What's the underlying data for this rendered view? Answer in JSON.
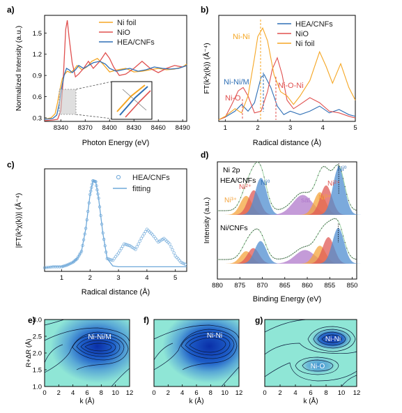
{
  "colors": {
    "ni_foil": "#f5a623",
    "nio": "#e0504f",
    "hea": "#2f6fb5",
    "fit_line": "#6ea8d9",
    "orange": "#f4a43c",
    "red": "#e05a55",
    "blue": "#4f8ed0",
    "purple": "#b07acb",
    "ni3": "#f6b545",
    "ni2": "#e46b6b",
    "wt_bg": "#8fe6d6",
    "wt_mid": "#5aa9d6",
    "wt_core": "#0a2fa8"
  },
  "panels": {
    "a": {
      "label": "a)"
    },
    "b": {
      "label": "b)"
    },
    "c": {
      "label": "c)"
    },
    "d": {
      "label": "d)"
    },
    "e": {
      "label": "e)"
    },
    "f": {
      "label": "f)"
    },
    "g": {
      "label": "g)"
    }
  },
  "chart_data": [
    {
      "id": "a",
      "type": "line",
      "xlabel": "Photon Energy (eV)",
      "ylabel": "Normalized Intensity (a.u.)",
      "xlim": [
        8320,
        8495
      ],
      "ylim": [
        0.25,
        1.75
      ],
      "xticks": [
        "8340",
        "8370",
        "8400",
        "8430",
        "8460",
        "8490"
      ],
      "yticks": [
        "0.3",
        "0.6",
        "0.9",
        "1.2",
        "1.5"
      ],
      "legend_position": "top-right",
      "inset": true,
      "series": [
        {
          "name": "Ni foil",
          "x": [
            8320,
            8328,
            8333,
            8336,
            8339,
            8342,
            8345,
            8348,
            8352,
            8356,
            8360,
            8366,
            8372,
            8378,
            8385,
            8392,
            8400,
            8410,
            8420,
            8430,
            8440,
            8450,
            8460,
            8470,
            8480,
            8490,
            8495
          ],
          "y": [
            0.28,
            0.3,
            0.36,
            0.52,
            0.7,
            0.86,
            0.92,
            0.96,
            0.94,
            0.98,
            1.04,
            0.98,
            1.02,
            1.1,
            1.14,
            1.06,
            0.95,
            0.98,
            1.0,
            0.95,
            0.96,
            0.98,
            1.0,
            0.98,
            0.99,
            1.02,
            1.06
          ]
        },
        {
          "name": "NiO",
          "x": [
            8320,
            8330,
            8336,
            8340,
            8343,
            8346,
            8348,
            8350,
            8354,
            8358,
            8362,
            8368,
            8374,
            8380,
            8388,
            8395,
            8400,
            8405,
            8412,
            8420,
            8430,
            8440,
            8450,
            8460,
            8470,
            8480,
            8490,
            8495
          ],
          "y": [
            0.26,
            0.27,
            0.28,
            0.4,
            0.85,
            1.55,
            1.68,
            1.45,
            1.08,
            0.88,
            0.92,
            1.0,
            1.1,
            1.0,
            1.1,
            1.22,
            1.14,
            1.02,
            0.9,
            0.92,
            1.0,
            1.1,
            1.0,
            0.94,
            1.0,
            1.04,
            1.02,
            1.04
          ]
        },
        {
          "name": "HEA/CNFs",
          "x": [
            8320,
            8330,
            8335,
            8338,
            8341,
            8344,
            8347,
            8350,
            8354,
            8358,
            8362,
            8368,
            8374,
            8380,
            8388,
            8395,
            8400,
            8408,
            8416,
            8425,
            8435,
            8445,
            8455,
            8465,
            8475,
            8485,
            8495
          ],
          "y": [
            0.28,
            0.29,
            0.34,
            0.5,
            0.72,
            0.9,
            1.0,
            0.98,
            0.94,
            0.98,
            1.04,
            1.0,
            1.04,
            1.08,
            1.1,
            1.06,
            1.0,
            0.96,
            0.98,
            1.0,
            0.96,
            0.98,
            1.02,
            1.0,
            0.99,
            1.0,
            1.04
          ]
        }
      ]
    },
    {
      "id": "b",
      "type": "line",
      "xlabel": "Radical distance (Å)",
      "ylabel": "FT(k³χ(k)) (Å⁻⁴)",
      "xlim": [
        0.8,
        5.0
      ],
      "xticks": [
        "1",
        "2",
        "3",
        "4",
        "5"
      ],
      "legend_position": "top-right",
      "annotations": [
        "Ni-Ni",
        "Ni-Ni/M",
        "Ni-O",
        "Ni-O-Ni"
      ],
      "series": [
        {
          "name": "HEA/CNFs",
          "x": [
            0.8,
            1.0,
            1.3,
            1.5,
            1.7,
            1.9,
            2.1,
            2.2,
            2.4,
            2.6,
            2.8,
            3.0,
            3.3,
            3.6,
            3.9,
            4.2,
            4.5,
            4.8,
            5.0
          ],
          "y": [
            0.02,
            0.05,
            0.12,
            0.2,
            0.12,
            0.22,
            0.52,
            0.55,
            0.4,
            0.18,
            0.08,
            0.12,
            0.08,
            0.12,
            0.18,
            0.1,
            0.14,
            0.08,
            0.06
          ]
        },
        {
          "name": "NiO",
          "x": [
            0.8,
            1.0,
            1.2,
            1.4,
            1.55,
            1.7,
            1.9,
            2.1,
            2.3,
            2.45,
            2.6,
            2.75,
            2.9,
            3.1,
            3.3,
            3.6,
            3.9,
            4.2,
            4.5,
            4.8,
            5.0
          ],
          "y": [
            0.02,
            0.05,
            0.2,
            0.36,
            0.4,
            0.3,
            0.1,
            0.12,
            0.35,
            0.62,
            0.75,
            0.55,
            0.25,
            0.15,
            0.2,
            0.28,
            0.22,
            0.12,
            0.1,
            0.06,
            0.04
          ]
        },
        {
          "name": "Ni foil",
          "x": [
            0.8,
            1.0,
            1.3,
            1.5,
            1.7,
            1.9,
            2.0,
            2.15,
            2.3,
            2.5,
            2.7,
            2.9,
            3.1,
            3.3,
            3.6,
            3.9,
            4.1,
            4.3,
            4.55,
            4.8,
            5.0
          ],
          "y": [
            0.02,
            0.06,
            0.15,
            0.1,
            0.3,
            0.75,
            1.0,
            1.1,
            0.95,
            0.55,
            0.35,
            0.3,
            0.2,
            0.3,
            0.48,
            0.82,
            0.65,
            0.45,
            0.68,
            0.4,
            0.25
          ]
        }
      ]
    },
    {
      "id": "c",
      "type": "line",
      "xlabel": "Radical distance (Å)",
      "ylabel": "|FT(k³χ(k))| (Å⁻⁴)",
      "xlim": [
        0.4,
        5.4
      ],
      "xticks": [
        "1",
        "2",
        "3",
        "4",
        "5"
      ],
      "legend_position": "top-right",
      "series": [
        {
          "name": "HEA/CNFs",
          "x": [
            0.4,
            0.7,
            1.0,
            1.2,
            1.4,
            1.55,
            1.7,
            1.85,
            2.0,
            2.1,
            2.2,
            2.3,
            2.45,
            2.6,
            2.8,
            3.0,
            3.2,
            3.4,
            3.6,
            3.8,
            4.0,
            4.2,
            4.4,
            4.6,
            4.8,
            5.0,
            5.2,
            5.4
          ],
          "y": [
            0.02,
            0.03,
            0.03,
            0.05,
            0.08,
            0.12,
            0.2,
            0.45,
            0.82,
            0.97,
            0.96,
            0.78,
            0.4,
            0.12,
            0.1,
            0.18,
            0.28,
            0.26,
            0.22,
            0.34,
            0.44,
            0.38,
            0.3,
            0.34,
            0.28,
            0.15,
            0.08,
            0.05
          ]
        },
        {
          "name": "fitting",
          "x": [
            0.4,
            0.7,
            1.0,
            1.2,
            1.4,
            1.55,
            1.7,
            1.85,
            2.0,
            2.1,
            2.2,
            2.3,
            2.45,
            2.6,
            2.8,
            3.0,
            3.2,
            3.4,
            3.6,
            3.8,
            4.0,
            4.2,
            4.4,
            4.6,
            4.8,
            5.0,
            5.2,
            5.4
          ],
          "y": [
            0.02,
            0.03,
            0.03,
            0.05,
            0.08,
            0.12,
            0.2,
            0.45,
            0.82,
            0.97,
            0.96,
            0.78,
            0.4,
            0.12,
            0.04,
            0.03,
            0.03,
            0.03,
            0.03,
            0.03,
            0.03,
            0.03,
            0.03,
            0.03,
            0.03,
            0.03,
            0.03,
            0.03
          ]
        }
      ]
    },
    {
      "id": "d",
      "type": "area",
      "title": "Ni 2p",
      "xlabel": "Binding Energy (eV)",
      "ylabel": "Intensity (a.u.)",
      "xlim": [
        880,
        849
      ],
      "reversed_x": true,
      "xticks": [
        "880",
        "875",
        "870",
        "865",
        "860",
        "855",
        "850"
      ],
      "sample_labels": [
        "HEA/CNFs",
        "Ni/CNFs"
      ],
      "peak_labels": [
        "Ni³⁺",
        "Ni²⁺",
        "Ni⁰",
        "sat",
        "Ni³⁺",
        "Ni²⁺",
        "Ni⁰"
      ],
      "peaks": {
        "HEA/CNFs": [
          {
            "label": "Ni³⁺",
            "center": 873.6,
            "height": 0.4,
            "color": "orange"
          },
          {
            "label": "Ni²⁺",
            "center": 871.9,
            "height": 0.52,
            "color": "red"
          },
          {
            "label": "Ni⁰",
            "center": 870.3,
            "height": 0.78,
            "color": "blue"
          },
          {
            "label": "sat",
            "center": 861.0,
            "height": 0.42,
            "color": "purple"
          },
          {
            "label": "Ni³⁺",
            "center": 857.2,
            "height": 0.48,
            "color": "orange"
          },
          {
            "label": "Ni²⁺",
            "center": 855.8,
            "height": 0.62,
            "color": "red"
          },
          {
            "label": "Ni⁰",
            "center": 853.0,
            "height": 1.0,
            "color": "blue"
          }
        ],
        "Ni/CNFs": [
          {
            "label": "Ni³⁺",
            "center": 873.6,
            "height": 0.32,
            "color": "orange"
          },
          {
            "label": "Ni²⁺",
            "center": 872.0,
            "height": 0.4,
            "color": "red"
          },
          {
            "label": "Ni⁰",
            "center": 870.4,
            "height": 0.58,
            "color": "blue"
          },
          {
            "label": "sat",
            "center": 860.5,
            "height": 0.35,
            "color": "purple"
          },
          {
            "label": "Ni³⁺",
            "center": 857.2,
            "height": 0.46,
            "color": "orange"
          },
          {
            "label": "Ni²⁺",
            "center": 855.3,
            "height": 0.68,
            "color": "red"
          },
          {
            "label": "Ni⁰",
            "center": 853.1,
            "height": 0.92,
            "color": "blue"
          }
        ]
      }
    },
    {
      "id": "e",
      "type": "heatmap",
      "xlabel": "k (Å)",
      "ylabel": "R+ΔR (Å)",
      "xlim": [
        0,
        12
      ],
      "ylim": [
        1.0,
        3.0
      ],
      "xticks": [
        "0",
        "2",
        "4",
        "6",
        "8",
        "10",
        "12"
      ],
      "yticks": [
        "1.0",
        "1.5",
        "2.0",
        "2.5",
        "3.0"
      ],
      "maxima": [
        {
          "label": "Ni-Ni/M",
          "k": 8.2,
          "r": 2.15
        }
      ]
    },
    {
      "id": "f",
      "type": "heatmap",
      "xlabel": "k (Å)",
      "xlim": [
        0,
        12
      ],
      "ylim": [
        1.0,
        3.0
      ],
      "xticks": [
        "0",
        "2",
        "4",
        "6",
        "8",
        "10",
        "12"
      ],
      "maxima": [
        {
          "label": "Ni-Ni",
          "k": 8.5,
          "r": 2.15
        }
      ]
    },
    {
      "id": "g",
      "type": "heatmap",
      "xlabel": "k (Å)",
      "xlim": [
        0,
        12
      ],
      "ylim": [
        1.0,
        3.0
      ],
      "xticks": [
        "0",
        "2",
        "4",
        "6",
        "8",
        "10",
        "12"
      ],
      "maxima": [
        {
          "label": "Ni-Ni",
          "k": 8.6,
          "r": 2.55
        },
        {
          "label": "Ni-O",
          "k": 6.8,
          "r": 1.45
        }
      ]
    }
  ]
}
